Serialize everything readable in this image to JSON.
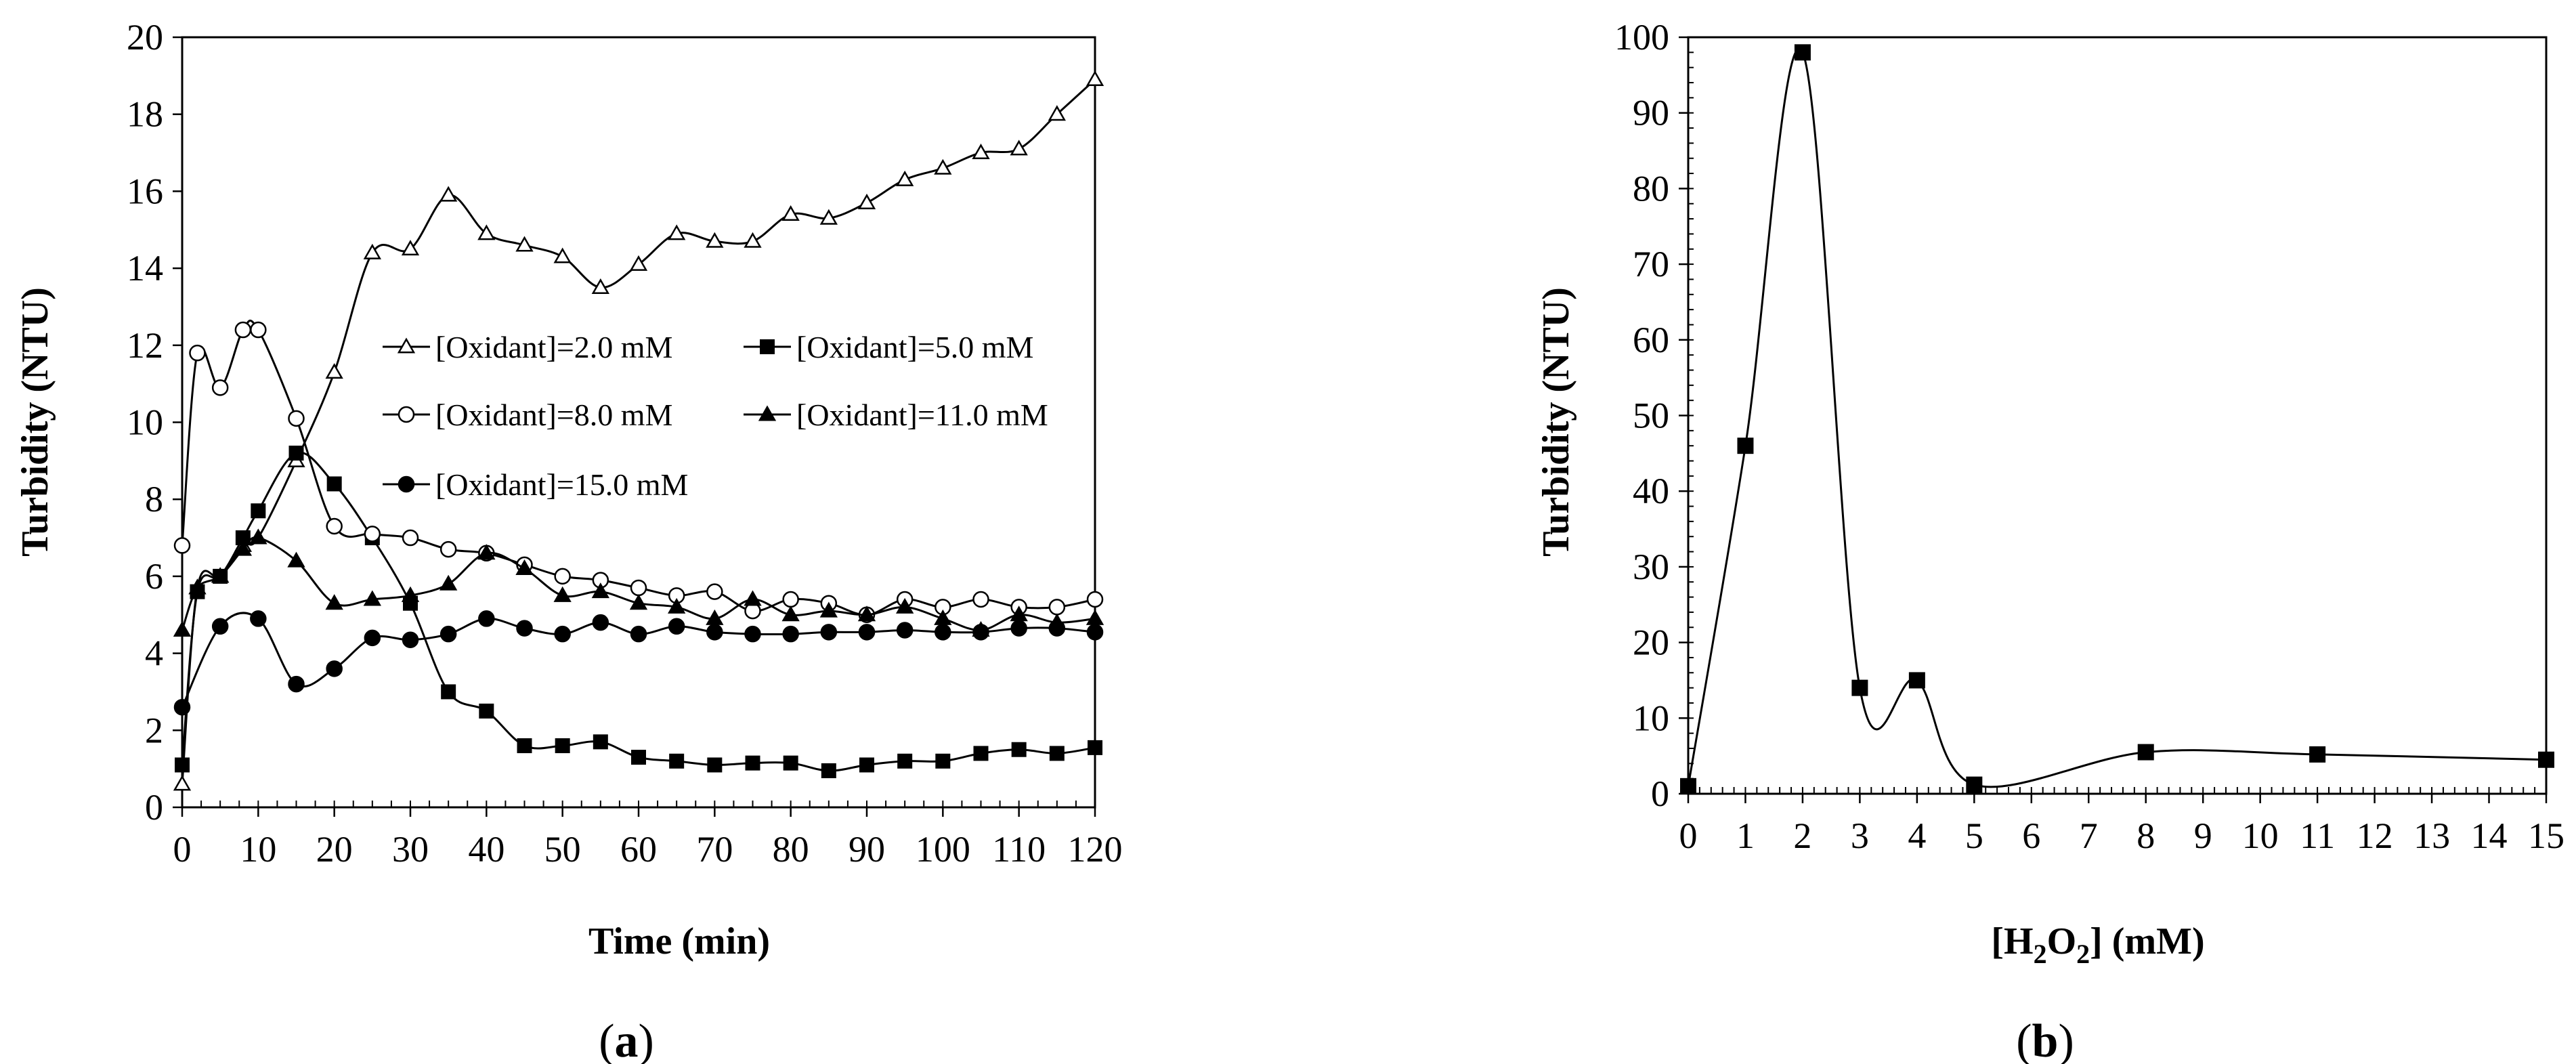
{
  "chart_data": [
    {
      "panel": "(a)",
      "panel_letter": "a",
      "type": "line",
      "xlabel": "Time (min)",
      "ylabel": "Turbidity (NTU)",
      "xlim": [
        0,
        120
      ],
      "ylim": [
        0,
        20
      ],
      "xticks": [
        0,
        10,
        20,
        30,
        40,
        50,
        60,
        70,
        80,
        90,
        100,
        110,
        120
      ],
      "yticks": [
        0,
        2,
        4,
        6,
        8,
        10,
        12,
        14,
        16,
        18,
        20
      ],
      "grid": false,
      "legend_position": "center",
      "series": [
        {
          "name": "[Oxidant]=2.0 mM",
          "marker": "triangle-open",
          "x": [
            0,
            2,
            5,
            8,
            10,
            15,
            20,
            25,
            30,
            35,
            40,
            45,
            50,
            55,
            60,
            65,
            70,
            75,
            80,
            85,
            90,
            95,
            100,
            105,
            110,
            115,
            120
          ],
          "y": [
            0.6,
            5.7,
            6.0,
            6.8,
            7.0,
            9.0,
            11.3,
            14.4,
            14.5,
            15.9,
            14.9,
            14.6,
            14.3,
            13.5,
            14.1,
            14.9,
            14.7,
            14.7,
            15.4,
            15.3,
            15.7,
            16.3,
            16.6,
            17.0,
            17.1,
            18.0,
            18.9
          ]
        },
        {
          "name": "[Oxidant]=5.0 mM",
          "marker": "square-filled",
          "x": [
            0,
            2,
            5,
            8,
            10,
            15,
            20,
            25,
            30,
            35,
            40,
            45,
            50,
            55,
            60,
            65,
            70,
            75,
            80,
            85,
            90,
            95,
            100,
            105,
            110,
            115,
            120
          ],
          "y": [
            1.1,
            5.6,
            6.0,
            7.0,
            7.7,
            9.2,
            8.4,
            7.0,
            5.3,
            3.0,
            2.5,
            1.6,
            1.6,
            1.7,
            1.3,
            1.2,
            1.1,
            1.15,
            1.15,
            0.95,
            1.1,
            1.2,
            1.2,
            1.4,
            1.5,
            1.4,
            1.55
          ]
        },
        {
          "name": "[Oxidant]=8.0 mM",
          "marker": "circle-open",
          "x": [
            0,
            2,
            5,
            8,
            10,
            15,
            20,
            25,
            30,
            35,
            40,
            45,
            50,
            55,
            60,
            65,
            70,
            75,
            80,
            85,
            90,
            95,
            100,
            105,
            110,
            115,
            120
          ],
          "y": [
            6.8,
            11.8,
            10.9,
            12.4,
            12.4,
            10.1,
            7.3,
            7.1,
            7.0,
            6.7,
            6.6,
            6.3,
            6.0,
            5.9,
            5.7,
            5.5,
            5.6,
            5.1,
            5.4,
            5.3,
            5.0,
            5.4,
            5.2,
            5.4,
            5.2,
            5.2,
            5.4
          ]
        },
        {
          "name": "[Oxidant]=11.0 mM",
          "marker": "triangle-filled",
          "x": [
            0,
            2,
            5,
            8,
            10,
            15,
            20,
            25,
            30,
            35,
            40,
            45,
            50,
            55,
            60,
            65,
            70,
            75,
            80,
            85,
            90,
            95,
            100,
            105,
            110,
            115,
            120
          ],
          "y": [
            4.6,
            5.7,
            6.0,
            6.7,
            7.0,
            6.4,
            5.3,
            5.4,
            5.5,
            5.8,
            6.6,
            6.2,
            5.5,
            5.6,
            5.3,
            5.2,
            4.9,
            5.4,
            5.0,
            5.1,
            5.0,
            5.2,
            4.9,
            4.6,
            5.0,
            4.8,
            4.9
          ]
        },
        {
          "name": "[Oxidant]=15.0 mM",
          "marker": "circle-filled",
          "x": [
            0,
            5,
            10,
            15,
            20,
            25,
            30,
            35,
            40,
            45,
            50,
            55,
            60,
            65,
            70,
            75,
            80,
            85,
            90,
            95,
            100,
            105,
            110,
            115,
            120
          ],
          "y": [
            2.6,
            4.7,
            4.9,
            3.2,
            3.6,
            4.4,
            4.35,
            4.5,
            4.9,
            4.65,
            4.5,
            4.8,
            4.5,
            4.7,
            4.55,
            4.5,
            4.5,
            4.55,
            4.55,
            4.6,
            4.55,
            4.55,
            4.65,
            4.65,
            4.55
          ]
        }
      ]
    },
    {
      "panel": "(b)",
      "panel_letter": "b",
      "type": "line",
      "xlabel_parts": [
        "[H",
        "2",
        "O",
        "2",
        "] (mM)"
      ],
      "ylabel": "Turbidity (NTU)",
      "xlim": [
        0,
        15
      ],
      "ylim": [
        0,
        100
      ],
      "xticks": [
        0,
        1,
        2,
        3,
        4,
        5,
        6,
        7,
        8,
        9,
        10,
        11,
        12,
        13,
        14,
        15
      ],
      "yticks": [
        0,
        10,
        20,
        30,
        40,
        50,
        60,
        70,
        80,
        90,
        100
      ],
      "grid": false,
      "series": [
        {
          "name": "H2O2",
          "marker": "square-filled",
          "x": [
            0,
            1,
            2,
            3,
            4,
            5,
            8,
            11,
            15
          ],
          "y": [
            1,
            46,
            98,
            14,
            15,
            1.2,
            5.5,
            5.2,
            4.5
          ]
        }
      ]
    }
  ]
}
